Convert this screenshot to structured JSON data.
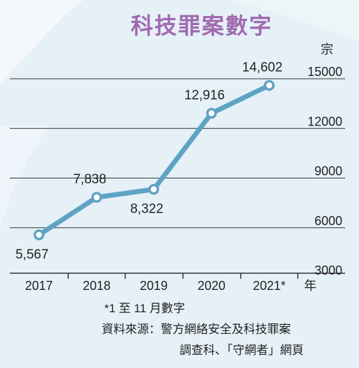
{
  "chart_data": {
    "type": "line",
    "title": "科技罪案數字",
    "ylabel": "宗",
    "xlabel": "年",
    "categories": [
      "2017",
      "2018",
      "2019",
      "2020",
      "2021*"
    ],
    "values": [
      5567,
      7838,
      8322,
      12916,
      14602
    ],
    "value_labels": [
      "5,567",
      "7,838",
      "8,322",
      "12,916",
      "14,602"
    ],
    "yticks": [
      3000,
      6000,
      9000,
      12000,
      15000
    ],
    "ylim": [
      3000,
      15000
    ],
    "grid": true,
    "line_color": "#5fa3c4",
    "footnote": "*1 至 11 月數字",
    "source_line1": "資料來源：警方網絡安全及科技罪案",
    "source_line2": "調查科、「守網者」網頁"
  }
}
